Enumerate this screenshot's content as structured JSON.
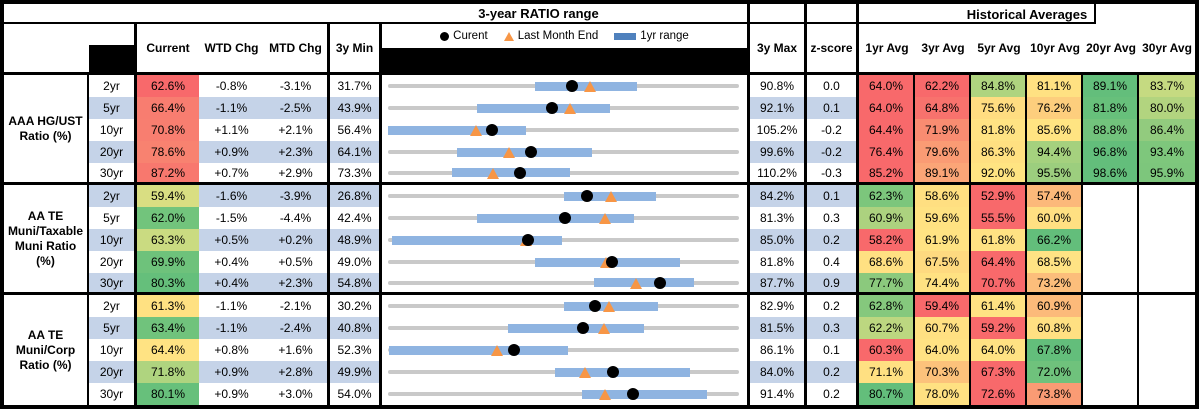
{
  "bands": {
    "chart_title": "3-year RATIO range",
    "hist_title": "Historical Averages"
  },
  "legend": {
    "current": "Curent",
    "last_month": "Last Month End",
    "range": "1yr range"
  },
  "columns": {
    "current": "Current",
    "wtd": "WTD Chg",
    "mtd": "MTD Chg",
    "min": "3y Min",
    "max": "3y Max",
    "z": "z-score"
  },
  "avg_columns": [
    "1yr Avg",
    "3yr Avg",
    "5yr Avg",
    "10yr Avg",
    "20yr Avg",
    "30yr Avg"
  ],
  "colors": {
    "stripe_blue": "#C5D3E8",
    "range_bar_blue": "#8FB4E1",
    "legend_bar_blue": "#4F81BD",
    "track_gray": "#C9C9C9",
    "marker_orange": "#F79646",
    "scale_red": "#F8696B",
    "scale_yellow": "#FFE283",
    "scale_green": "#63BE7B"
  },
  "chart_data": {
    "type": "table",
    "title": "3-year RATIO range",
    "groups": [
      {
        "label": "AAA HG/UST Ratio (%)",
        "rows": [
          {
            "tenor": "2yr",
            "current": "62.6%",
            "current_bg": "#F8696B",
            "wtd": "-0.8%",
            "mtd": "-3.1%",
            "min": "31.7%",
            "max": "90.8%",
            "z": "0.0",
            "range": {
              "min": 31.7,
              "max": 90.8,
              "bar_lo": 56.4,
              "bar_hi": 73.6,
              "current": 62.6,
              "last_month": 65.7
            },
            "avgs": [
              "64.0%",
              "62.2%",
              "84.8%",
              "81.1%",
              "89.1%",
              "83.7%"
            ],
            "avg_bg": [
              "#F8696B",
              "#F8696B",
              "#AFD47F",
              "#FFE182",
              "#63BE7B",
              "#C5DA81"
            ]
          },
          {
            "tenor": "5yr",
            "current": "66.4%",
            "current_bg": "#F87D70",
            "wtd": "-1.1%",
            "mtd": "-2.5%",
            "min": "43.9%",
            "max": "92.1%",
            "z": "0.1",
            "range": {
              "min": 43.9,
              "max": 92.1,
              "bar_lo": 56.1,
              "bar_hi": 74.4,
              "current": 66.4,
              "last_month": 68.9
            },
            "avgs": [
              "64.0%",
              "64.8%",
              "75.6%",
              "76.2%",
              "81.8%",
              "80.0%"
            ],
            "avg_bg": [
              "#F8696B",
              "#F8726D",
              "#FFDD81",
              "#FDCE7D",
              "#67C07B",
              "#B2D47F"
            ]
          },
          {
            "tenor": "10yr",
            "current": "70.8%",
            "current_bg": "#F87E70",
            "wtd": "+1.1%",
            "mtd": "+2.1%",
            "min": "56.4%",
            "max": "105.2%",
            "z": "-0.2",
            "range": {
              "min": 56.4,
              "max": 105.2,
              "bar_lo": 56.4,
              "bar_hi": 75.6,
              "current": 70.8,
              "last_month": 68.7
            },
            "avgs": [
              "64.4%",
              "71.9%",
              "81.8%",
              "85.6%",
              "88.8%",
              "86.4%"
            ],
            "avg_bg": [
              "#F8696B",
              "#F98C71",
              "#FFE383",
              "#FFE482",
              "#72C37C",
              "#92CB7E"
            ]
          },
          {
            "tenor": "20yr",
            "current": "78.6%",
            "current_bg": "#F88270",
            "wtd": "+0.9%",
            "mtd": "+2.3%",
            "min": "64.1%",
            "max": "99.6%",
            "z": "-0.2",
            "range": {
              "min": 64.1,
              "max": 99.6,
              "bar_lo": 71.1,
              "bar_hi": 84.7,
              "current": 78.6,
              "last_month": 76.3
            },
            "avgs": [
              "76.4%",
              "79.6%",
              "86.3%",
              "94.4%",
              "96.8%",
              "93.4%"
            ],
            "avg_bg": [
              "#F8696B",
              "#FA9B74",
              "#FFE081",
              "#A5D17E",
              "#63BE7B",
              "#7EC77C"
            ]
          },
          {
            "tenor": "30yr",
            "current": "87.2%",
            "current_bg": "#F8786E",
            "wtd": "+0.7%",
            "mtd": "+2.9%",
            "min": "73.3%",
            "max": "110.2%",
            "z": "-0.3",
            "range": {
              "min": 73.3,
              "max": 110.2,
              "bar_lo": 80.0,
              "bar_hi": 92.4,
              "current": 87.2,
              "last_month": 84.3
            },
            "avgs": [
              "85.2%",
              "89.1%",
              "92.0%",
              "95.5%",
              "98.6%",
              "95.9%"
            ],
            "avg_bg": [
              "#F8696B",
              "#FBA577",
              "#FFE482",
              "#9CCE7E",
              "#63BE7B",
              "#7DC67C"
            ]
          }
        ]
      },
      {
        "label": "AA TE Muni/Taxable Muni Ratio (%)",
        "rows": [
          {
            "tenor": "2yr",
            "current": "59.4%",
            "current_bg": "#D9DE82",
            "wtd": "-1.6%",
            "mtd": "-3.9%",
            "min": "26.8%",
            "max": "84.2%",
            "z": "0.1",
            "range": {
              "min": 26.8,
              "max": 84.2,
              "bar_lo": 55.5,
              "bar_hi": 70.6,
              "current": 59.4,
              "last_month": 63.3
            },
            "avgs": [
              "62.3%",
              "58.6%",
              "52.9%",
              "57.4%",
              "",
              ""
            ],
            "avg_bg": [
              "#7CC67C",
              "#FFDF81",
              "#F8696B",
              "#FCB97A",
              "#FFFFFF",
              "#FFFFFF"
            ]
          },
          {
            "tenor": "5yr",
            "current": "62.0%",
            "current_bg": "#72C47C",
            "wtd": "-1.5%",
            "mtd": "-4.4%",
            "min": "42.4%",
            "max": "81.3%",
            "z": "0.3",
            "range": {
              "min": 42.4,
              "max": 81.3,
              "bar_lo": 52.3,
              "bar_hi": 69.7,
              "current": 62.0,
              "last_month": 66.4
            },
            "avgs": [
              "60.9%",
              "59.6%",
              "55.5%",
              "60.0%",
              "",
              ""
            ],
            "avg_bg": [
              "#ACD27F",
              "#FFE282",
              "#F8696B",
              "#FFE082",
              "#FFFFFF",
              "#FFFFFF"
            ]
          },
          {
            "tenor": "10yr",
            "current": "63.3%",
            "current_bg": "#CADB81",
            "wtd": "+0.5%",
            "mtd": "+0.2%",
            "min": "48.9%",
            "max": "85.0%",
            "z": "0.2",
            "range": {
              "min": 48.9,
              "max": 85.0,
              "bar_lo": 49.3,
              "bar_hi": 66.8,
              "current": 63.3,
              "last_month": 63.1
            },
            "avgs": [
              "58.2%",
              "61.9%",
              "61.8%",
              "66.2%",
              "",
              ""
            ],
            "avg_bg": [
              "#F8696B",
              "#FFE383",
              "#FFE283",
              "#63BE7B",
              "#FFFFFF",
              "#FFFFFF"
            ]
          },
          {
            "tenor": "20yr",
            "current": "69.9%",
            "current_bg": "#6EC27B",
            "wtd": "+0.4%",
            "mtd": "+0.5%",
            "min": "49.0%",
            "max": "81.8%",
            "z": "0.4",
            "range": {
              "min": 49.0,
              "max": 81.8,
              "bar_lo": 62.7,
              "bar_hi": 76.3,
              "current": 69.9,
              "last_month": 69.4
            },
            "avgs": [
              "68.6%",
              "67.5%",
              "64.4%",
              "68.5%",
              "",
              ""
            ],
            "avg_bg": [
              "#FFE082",
              "#FEDA80",
              "#F8696B",
              "#FFE384",
              "#FFFFFF",
              "#FFFFFF"
            ]
          },
          {
            "tenor": "30yr",
            "current": "80.3%",
            "current_bg": "#65BF7B",
            "wtd": "+0.4%",
            "mtd": "+2.3%",
            "min": "54.8%",
            "max": "87.7%",
            "z": "0.9",
            "range": {
              "min": 54.8,
              "max": 87.7,
              "bar_lo": 74.1,
              "bar_hi": 83.5,
              "current": 80.3,
              "last_month": 78.0
            },
            "avgs": [
              "77.7%",
              "74.4%",
              "70.7%",
              "73.2%",
              "",
              ""
            ],
            "avg_bg": [
              "#8BC97D",
              "#FFE282",
              "#F8696B",
              "#FCBE7B",
              "#FFFFFF",
              "#FFFFFF"
            ]
          }
        ]
      },
      {
        "label": "AA TE Muni/Corp Ratio (%)",
        "rows": [
          {
            "tenor": "2yr",
            "current": "61.3%",
            "current_bg": "#FFE182",
            "wtd": "-1.1%",
            "mtd": "-2.1%",
            "min": "30.2%",
            "max": "82.9%",
            "z": "0.2",
            "range": {
              "min": 30.2,
              "max": 82.9,
              "bar_lo": 56.6,
              "bar_hi": 70.8,
              "current": 61.3,
              "last_month": 63.4
            },
            "avgs": [
              "62.8%",
              "59.4%",
              "61.4%",
              "60.9%",
              "",
              ""
            ],
            "avg_bg": [
              "#85C87D",
              "#F8696B",
              "#FFE283",
              "#FCBA7A",
              "#FFFFFF",
              "#FFFFFF"
            ]
          },
          {
            "tenor": "5yr",
            "current": "63.4%",
            "current_bg": "#70C37C",
            "wtd": "-1.1%",
            "mtd": "-2.4%",
            "min": "40.8%",
            "max": "81.5%",
            "z": "0.3",
            "range": {
              "min": 40.8,
              "max": 81.5,
              "bar_lo": 54.7,
              "bar_hi": 70.5,
              "current": 63.4,
              "last_month": 65.8
            },
            "avgs": [
              "62.2%",
              "60.7%",
              "59.2%",
              "60.8%",
              "",
              ""
            ],
            "avg_bg": [
              "#BCD780",
              "#FFE082",
              "#F8696B",
              "#FFE082",
              "#FFFFFF",
              "#FFFFFF"
            ]
          },
          {
            "tenor": "10yr",
            "current": "64.4%",
            "current_bg": "#FFE383",
            "wtd": "+0.8%",
            "mtd": "+1.6%",
            "min": "52.3%",
            "max": "86.1%",
            "z": "0.1",
            "range": {
              "min": 52.3,
              "max": 86.1,
              "bar_lo": 52.4,
              "bar_hi": 69.6,
              "current": 64.4,
              "last_month": 62.8
            },
            "avgs": [
              "60.3%",
              "64.0%",
              "64.0%",
              "67.8%",
              "",
              ""
            ],
            "avg_bg": [
              "#F8696B",
              "#FFE283",
              "#FFE283",
              "#63BE7B",
              "#FFFFFF",
              "#FFFFFF"
            ]
          },
          {
            "tenor": "20yr",
            "current": "71.8%",
            "current_bg": "#AFD47F",
            "wtd": "+0.9%",
            "mtd": "+2.8%",
            "min": "49.9%",
            "max": "84.0%",
            "z": "0.2",
            "range": {
              "min": 49.9,
              "max": 84.0,
              "bar_lo": 66.1,
              "bar_hi": 79.2,
              "current": 71.8,
              "last_month": 69.0
            },
            "avgs": [
              "71.1%",
              "70.3%",
              "67.3%",
              "72.0%",
              "",
              ""
            ],
            "avg_bg": [
              "#FFE082",
              "#FCC27B",
              "#F8696B",
              "#6FC27C",
              "#FFFFFF",
              "#FFFFFF"
            ]
          },
          {
            "tenor": "30yr",
            "current": "80.1%",
            "current_bg": "#67C07B",
            "wtd": "+0.9%",
            "mtd": "+3.0%",
            "min": "54.0%",
            "max": "91.4%",
            "z": "0.2",
            "range": {
              "min": 54.0,
              "max": 91.4,
              "bar_lo": 74.7,
              "bar_hi": 88.0,
              "current": 80.1,
              "last_month": 77.1
            },
            "avgs": [
              "80.7%",
              "78.0%",
              "72.6%",
              "73.8%",
              "",
              ""
            ],
            "avg_bg": [
              "#63BE7B",
              "#FFE182",
              "#F8696B",
              "#FA9B74",
              "#FFFFFF",
              "#FFFFFF"
            ]
          }
        ]
      }
    ]
  }
}
